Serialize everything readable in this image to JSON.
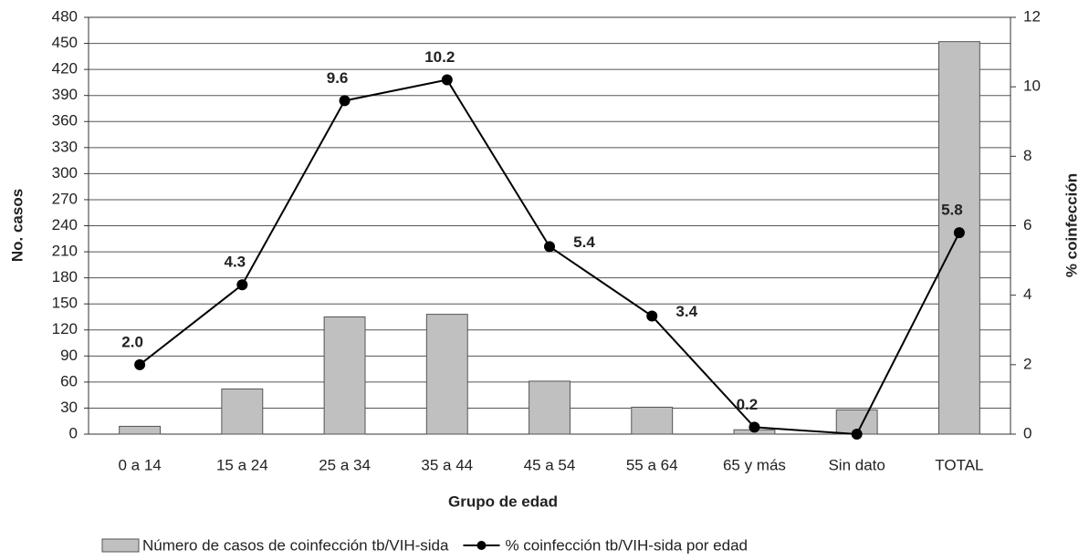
{
  "chart_data": {
    "type": "bar-line",
    "x_label": "Grupo de edad",
    "y_label": "No. casos",
    "y2_label": "% coinfección",
    "categories": [
      "0 a 14",
      "15 a 24",
      "25 a 34",
      "35 a 44",
      "45 a 54",
      "55 a 64",
      "65 y más",
      "Sin dato",
      "TOTAL"
    ],
    "series": [
      {
        "name": "Número de casos de coinfección tb/VIH-sida",
        "type": "bar",
        "color": "#c0c0c0",
        "values": [
          9,
          52,
          135,
          138,
          61,
          31,
          5,
          28,
          452
        ]
      },
      {
        "name": "% coinfección tb/VIH-sida por edad",
        "type": "line",
        "axis": "y2",
        "color": "#000000",
        "values": [
          2.0,
          4.3,
          9.6,
          10.2,
          5.4,
          3.4,
          0.2,
          0,
          5.8
        ],
        "value_labels": [
          "2.0",
          "4.3",
          "9.6",
          "10.2",
          "5.4",
          "3.4",
          "0.2",
          null,
          "5.8"
        ]
      }
    ],
    "ylim": [
      0,
      480
    ],
    "yticks": [
      0,
      30,
      60,
      90,
      120,
      150,
      180,
      210,
      240,
      270,
      300,
      330,
      360,
      390,
      420,
      450,
      480
    ],
    "y2lim": [
      0,
      12
    ],
    "y2ticks": [
      0,
      2,
      4,
      6,
      8,
      10,
      12
    ],
    "grid": true
  }
}
